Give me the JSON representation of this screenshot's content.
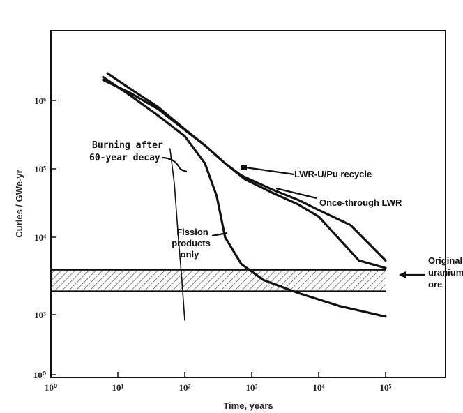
{
  "chart_data": {
    "type": "line",
    "xlabel": "Time, years",
    "ylabel": "Curies / GWe-yr",
    "xscale": "log",
    "yscale": "log",
    "xlim": [
      1,
      1000000
    ],
    "ylim": [
      1,
      10000000
    ],
    "grid": false,
    "x_tick_labels": [
      "10⁰",
      "10¹",
      "10²",
      "10³",
      "10⁴",
      "10⁵"
    ],
    "y_tick_labels": [
      "10⁰",
      "10³",
      "10⁴",
      "10⁵",
      "10⁶"
    ],
    "series": [
      {
        "name": "LWR-U/Pu recycle",
        "x": [
          6,
          15,
          40,
          100,
          200,
          400,
          800,
          2000,
          5000,
          10000,
          40000,
          100000
        ],
        "y": [
          2000000,
          1300000,
          750000,
          370000,
          220000,
          120000,
          70000,
          45000,
          30000,
          20000,
          5000,
          4000
        ]
      },
      {
        "name": "Once-through LWR",
        "x": [
          7,
          15,
          40,
          100,
          200,
          400,
          700,
          2000,
          5000,
          10000,
          30000,
          100000
        ],
        "y": [
          2500000,
          1500000,
          800000,
          380000,
          220000,
          120000,
          80000,
          50000,
          35000,
          25000,
          15000,
          5000
        ]
      },
      {
        "name": "Fission products only",
        "x": [
          6,
          15,
          40,
          100,
          200,
          300,
          400,
          700,
          1500,
          5000,
          20000,
          100000
        ],
        "y": [
          2200000,
          1200000,
          600000,
          300000,
          120000,
          40000,
          10000,
          4500,
          2800,
          1900,
          1300,
          800
        ]
      },
      {
        "name": "Burning after 60-year decay",
        "x": [
          60,
          70,
          80,
          90,
          100
        ],
        "y": [
          200000,
          60000,
          10000,
          3000,
          500
        ]
      }
    ],
    "bands": [
      {
        "name": "Original uranium ore",
        "x_range": [
          1,
          100000
        ],
        "y_range": [
          2000,
          3800
        ]
      }
    ],
    "annotations": {
      "burning_line1": "Burning after",
      "burning_line2": "60-year decay",
      "recycle": "LWR-U/Pu recycle",
      "once_through": "Once-through LWR",
      "fission_line1": "Fission",
      "fission_line2": "products",
      "fission_line3": "only",
      "ore_line1": "Original",
      "ore_line2": "uranium",
      "ore_line3": "ore"
    }
  }
}
